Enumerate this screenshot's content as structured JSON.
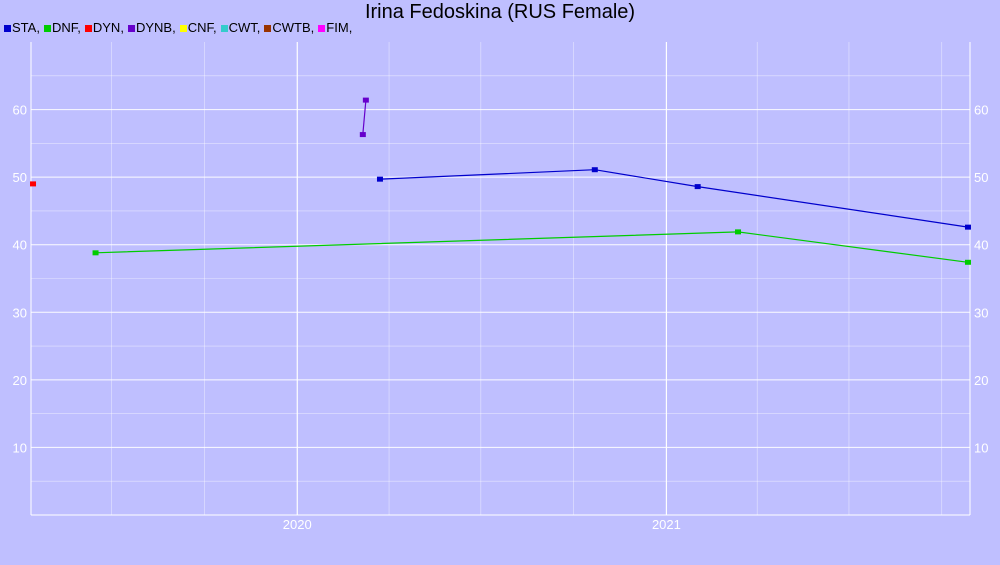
{
  "chart_data": {
    "type": "line",
    "title": "Irina Fedoskina (RUS Female)",
    "xlabel": "",
    "ylabel": "",
    "x_range": [
      "2019-04-12",
      "2021-10-29"
    ],
    "ylim": [
      0,
      70
    ],
    "y_ticks": [
      10,
      20,
      30,
      40,
      50,
      60
    ],
    "x_ticks": [
      {
        "label": "2020",
        "date": "2020-01-01"
      },
      {
        "label": "2021",
        "date": "2021-01-01"
      }
    ],
    "grid": true,
    "legend_position": "top-left",
    "legend": [
      {
        "name": "STA",
        "color": "#0000CC"
      },
      {
        "name": "DNF",
        "color": "#00CC00"
      },
      {
        "name": "DYN",
        "color": "#FF0000"
      },
      {
        "name": "DYNB",
        "color": "#6600CC"
      },
      {
        "name": "CNF",
        "color": "#FFFF00"
      },
      {
        "name": "CWT",
        "color": "#33CCCC"
      },
      {
        "name": "CWTB",
        "color": "#993300"
      },
      {
        "name": "FIM",
        "color": "#FF00FF"
      }
    ],
    "series": [
      {
        "name": "STA",
        "color": "#0000CC",
        "points": [
          {
            "x": "2020-03-23",
            "y": 49.7
          },
          {
            "x": "2020-10-22",
            "y": 51.1
          },
          {
            "x": "2021-02-01",
            "y": 48.6
          },
          {
            "x": "2021-10-27",
            "y": 42.6
          }
        ]
      },
      {
        "name": "DNF",
        "color": "#00CC00",
        "points": [
          {
            "x": "2019-06-15",
            "y": 38.8
          },
          {
            "x": "2021-03-13",
            "y": 41.9
          },
          {
            "x": "2021-10-27",
            "y": 37.4
          }
        ]
      },
      {
        "name": "DYN",
        "color": "#FF0000",
        "points": [
          {
            "x": "2019-04-14",
            "y": 49.0
          }
        ]
      },
      {
        "name": "DYNB",
        "color": "#6600CC",
        "points": [
          {
            "x": "2020-03-06",
            "y": 56.3
          },
          {
            "x": "2020-03-09",
            "y": 61.4
          }
        ]
      }
    ]
  }
}
